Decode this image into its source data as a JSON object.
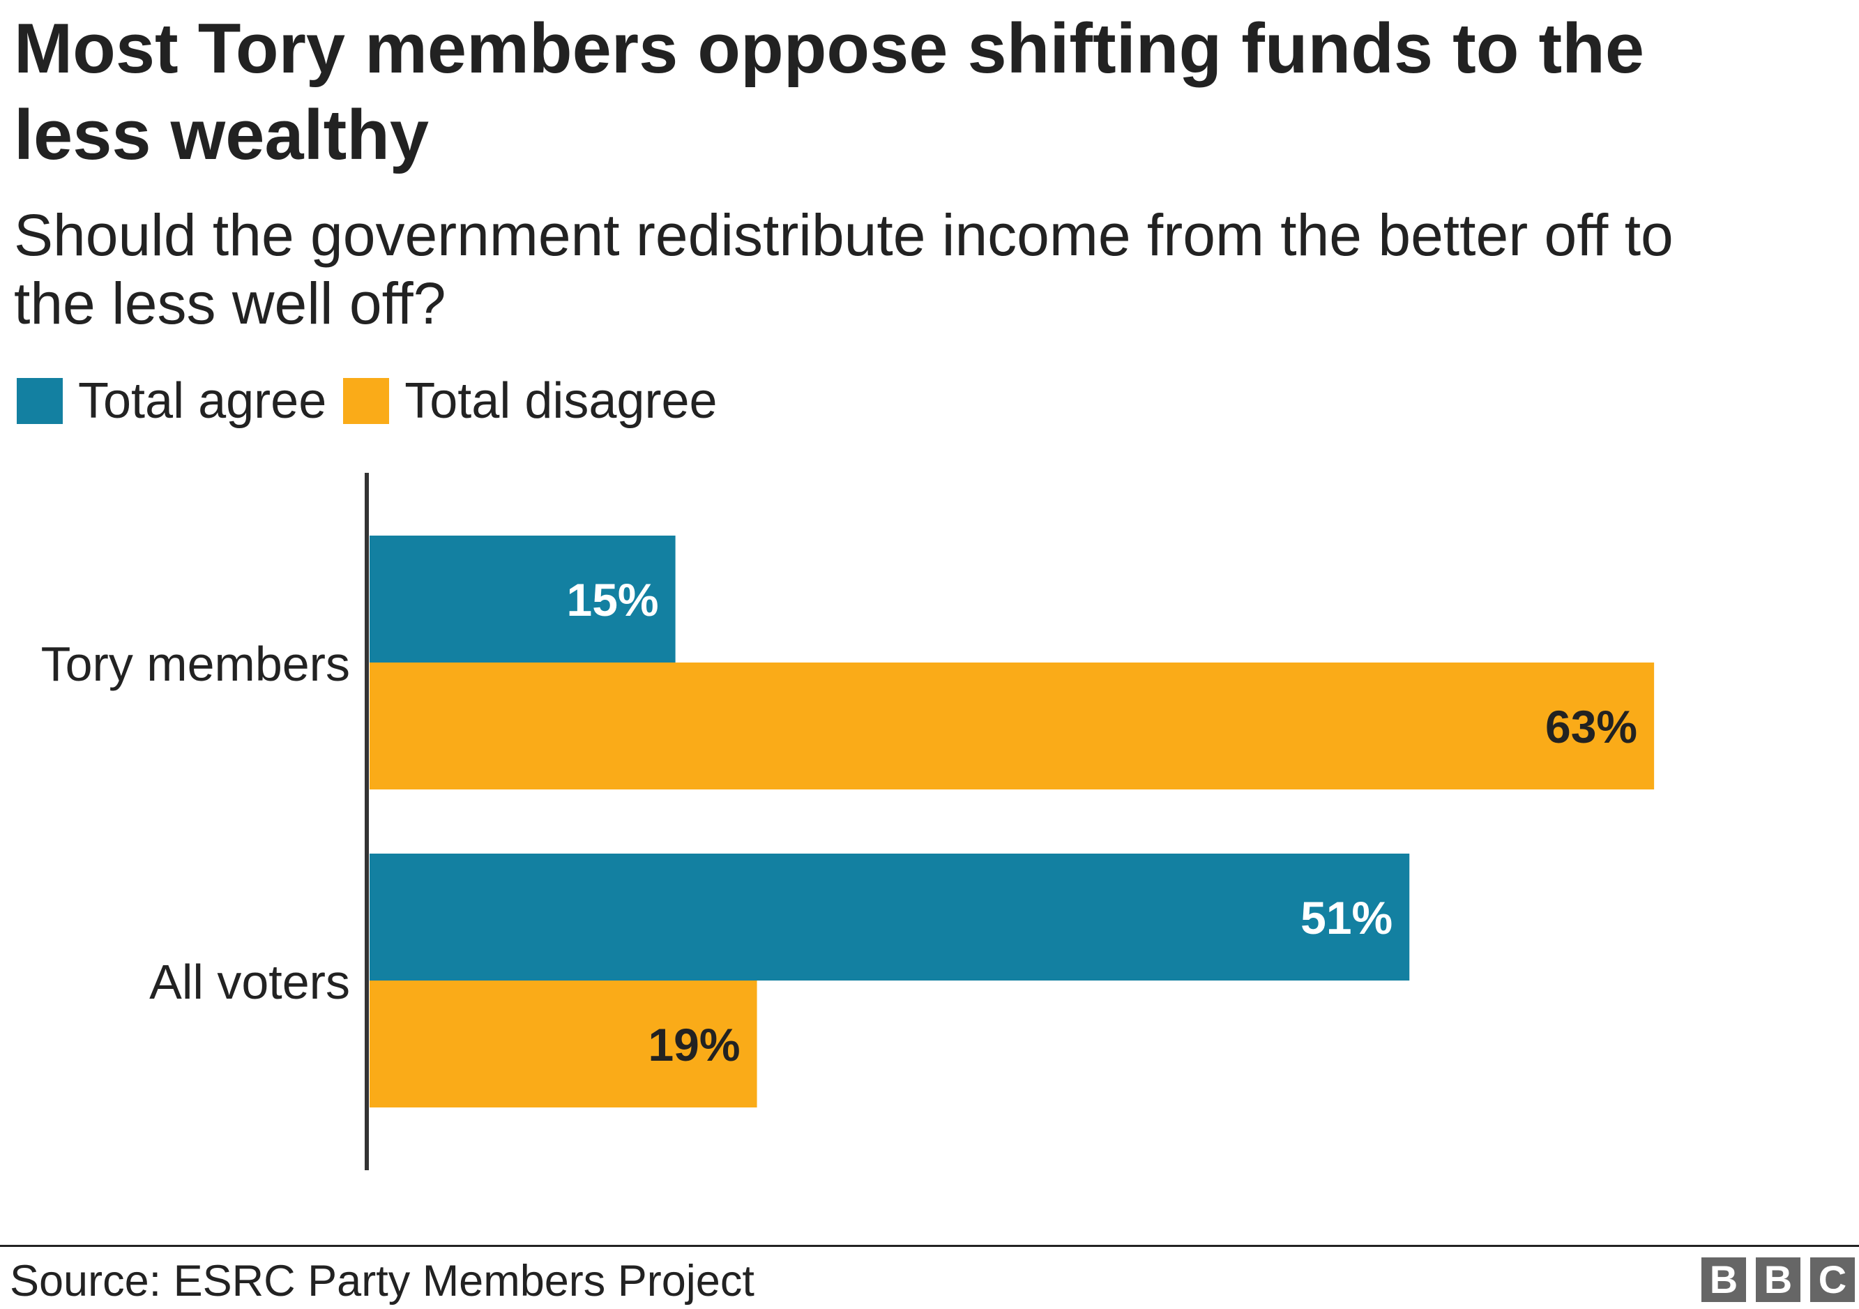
{
  "title": "Most Tory members oppose shifting funds to the less wealthy",
  "subtitle": "Should the government redistribute income from the better off to the less well off?",
  "legend": [
    {
      "label": "Total agree",
      "color": "#1380A1"
    },
    {
      "label": "Total disagree",
      "color": "#FAAB18"
    }
  ],
  "source": "Source: ESRC Party Members Project",
  "logo": {
    "letters": [
      "B",
      "B",
      "C"
    ]
  },
  "chart_data": {
    "type": "bar",
    "orientation": "horizontal",
    "categories": [
      "Tory members",
      "All voters"
    ],
    "series": [
      {
        "name": "Total agree",
        "color": "#1380A1",
        "label_color": "#ffffff",
        "values": [
          15,
          51
        ],
        "labels": [
          "15%",
          "51%"
        ]
      },
      {
        "name": "Total disagree",
        "color": "#FAAB18",
        "label_color": "#222222",
        "values": [
          63,
          19
        ],
        "labels": [
          "63%",
          "19%"
        ]
      }
    ],
    "title": "Most Tory members oppose shifting funds to the less wealthy",
    "xlabel": "",
    "ylabel": "",
    "xlim": [
      0,
      63
    ],
    "grid": false,
    "legend_position": "top-left"
  }
}
